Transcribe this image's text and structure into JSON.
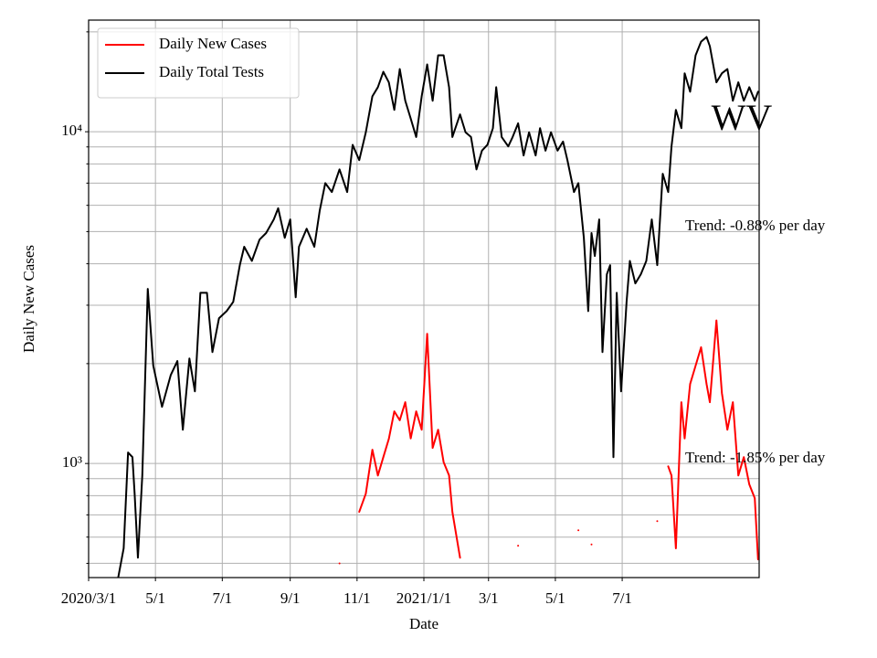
{
  "chart_data": {
    "type": "line",
    "x_label": "Date",
    "y_label": "Daily New Cases",
    "log_y": true,
    "grid": true,
    "legend": "upper left",
    "xlim": [
      "2020-03-01",
      "2021-11-03"
    ],
    "xticks": [
      {
        "value": "2020-03-01",
        "label": "2020/3/1"
      },
      {
        "value": "2020-05-01",
        "label": "5/1"
      },
      {
        "value": "2020-07-01",
        "label": "7/1"
      },
      {
        "value": "2020-09-01",
        "label": "9/1"
      },
      {
        "value": "2020-11-01",
        "label": "11/1"
      },
      {
        "value": "2021-01-01",
        "label": "2021/1/1"
      },
      {
        "value": "2021-03-01",
        "label": "3/1"
      },
      {
        "value": "2021-05-01",
        "label": "5/1"
      },
      {
        "value": "2021-07-01",
        "label": "7/1"
      }
    ],
    "ylim": [
      453,
      21700
    ],
    "yticks": [
      {
        "value": 1000,
        "label": "10³"
      },
      {
        "value": 10000,
        "label": "10⁴"
      }
    ],
    "yminor_ticks": [
      500,
      600,
      700,
      800,
      900,
      2000,
      3000,
      4000,
      5000,
      6000,
      7000,
      8000,
      9000,
      20000
    ],
    "annotations": [
      "WV",
      "Trend: -0.88% per day",
      "Trend: -1.85% per day"
    ],
    "x": [
      "2020-03-28",
      "2020-04-02",
      "2020-04-06",
      "2020-04-10",
      "2020-04-12",
      "2020-04-15",
      "2020-04-19",
      "2020-04-24",
      "2020-04-29",
      "2020-05-07",
      "2020-05-15",
      "2020-05-21",
      "2020-05-26",
      "2020-06-01",
      "2020-06-06",
      "2020-06-11",
      "2020-06-17",
      "2020-06-22",
      "2020-06-28",
      "2020-07-05",
      "2020-07-11",
      "2020-07-17",
      "2020-07-21",
      "2020-07-28",
      "2020-08-04",
      "2020-08-10",
      "2020-08-17",
      "2020-08-21",
      "2020-08-27",
      "2020-09-01",
      "2020-09-06",
      "2020-09-09",
      "2020-09-16",
      "2020-09-23",
      "2020-09-28",
      "2020-10-03",
      "2020-10-09",
      "2020-10-16",
      "2020-10-23",
      "2020-10-28",
      "2020-11-03",
      "2020-11-09",
      "2020-11-15",
      "2020-11-20",
      "2020-11-25",
      "2020-11-30",
      "2020-12-05",
      "2020-12-10",
      "2020-12-15",
      "2020-12-20",
      "2020-12-25",
      "2020-12-30",
      "2021-01-04",
      "2021-01-09",
      "2021-01-14",
      "2021-01-19",
      "2021-01-24",
      "2021-01-27",
      "2021-02-03",
      "2021-02-08",
      "2021-02-13",
      "2021-02-18",
      "2021-02-23",
      "2021-02-28",
      "2021-03-05",
      "2021-03-08",
      "2021-03-13",
      "2021-03-19",
      "2021-03-23",
      "2021-03-28",
      "2021-04-02",
      "2021-04-07",
      "2021-04-13",
      "2021-04-17",
      "2021-04-22",
      "2021-04-27",
      "2021-05-03",
      "2021-05-08",
      "2021-05-12",
      "2021-05-18",
      "2021-05-22",
      "2021-05-27",
      "2021-05-31",
      "2021-06-03",
      "2021-06-06",
      "2021-06-10",
      "2021-06-13",
      "2021-06-17",
      "2021-06-20",
      "2021-06-23",
      "2021-06-26",
      "2021-06-30",
      "2021-07-05",
      "2021-07-08",
      "2021-07-13",
      "2021-07-18",
      "2021-07-23",
      "2021-07-28",
      "2021-08-02",
      "2021-08-07",
      "2021-08-12",
      "2021-08-15",
      "2021-08-19",
      "2021-08-24",
      "2021-08-27",
      "2021-09-01",
      "2021-09-06",
      "2021-09-11",
      "2021-09-16",
      "2021-09-19",
      "2021-09-25",
      "2021-09-30",
      "2021-10-05",
      "2021-10-10",
      "2021-10-15",
      "2021-10-20",
      "2021-10-25",
      "2021-10-30",
      "2021-11-02"
    ],
    "series": [
      {
        "name": "Daily New Cases",
        "color": "#ff0000",
        "values": [
          null,
          null,
          null,
          null,
          null,
          null,
          null,
          null,
          null,
          null,
          null,
          null,
          null,
          null,
          null,
          null,
          null,
          null,
          null,
          null,
          null,
          null,
          null,
          null,
          null,
          null,
          null,
          null,
          null,
          null,
          null,
          null,
          null,
          null,
          null,
          null,
          null,
          500,
          null,
          null,
          715,
          811,
          1100,
          920,
          1045,
          1186,
          1436,
          1350,
          1530,
          1190,
          1436,
          1264,
          2460,
          1114,
          1264,
          1010,
          920,
          715,
          520,
          null,
          null,
          null,
          null,
          null,
          null,
          null,
          null,
          null,
          null,
          565,
          null,
          null,
          null,
          null,
          null,
          null,
          null,
          null,
          null,
          null,
          629,
          null,
          null,
          570,
          null,
          null,
          null,
          null,
          null,
          null,
          null,
          null,
          null,
          null,
          null,
          null,
          null,
          null,
          670,
          null,
          980,
          920,
          555,
          1530,
          1190,
          1736,
          1972,
          2240,
          1736,
          1530,
          2700,
          1630,
          1264,
          1530,
          920,
          1045,
          865,
          786,
          514
        ]
      },
      {
        "name": "Daily Total Tests",
        "color": "#000000",
        "values": [
          453,
          555,
          1079,
          1045,
          811,
          520,
          921,
          3360,
          1972,
          1482,
          1849,
          2036,
          1264,
          2073,
          1650,
          3270,
          3270,
          2167,
          2740,
          2880,
          3070,
          3960,
          4500,
          4080,
          4730,
          4950,
          5440,
          5880,
          4790,
          5440,
          3170,
          4500,
          5100,
          4500,
          5800,
          7000,
          6580,
          7700,
          6580,
          9130,
          8210,
          9960,
          12790,
          13620,
          15160,
          14090,
          11640,
          15450,
          12400,
          10950,
          9640,
          12790,
          15950,
          12400,
          17000,
          17000,
          13620,
          9640,
          11280,
          9960,
          9640,
          7700,
          8770,
          9130,
          10250,
          13620,
          9640,
          9030,
          9640,
          10600,
          8480,
          9960,
          8480,
          10250,
          8770,
          9960,
          8770,
          9340,
          8210,
          6580,
          7000,
          4790,
          2880,
          4950,
          4220,
          5440,
          2167,
          3718,
          3960,
          1045,
          3270,
          1650,
          3070,
          4080,
          3490,
          3718,
          4080,
          5440,
          3960,
          7470,
          6580,
          9030,
          11640,
          10250,
          15000,
          13200,
          17000,
          18680,
          19300,
          18100,
          14090,
          15000,
          15450,
          12400,
          14090,
          12400,
          13620,
          12400,
          13200
        ]
      }
    ]
  }
}
